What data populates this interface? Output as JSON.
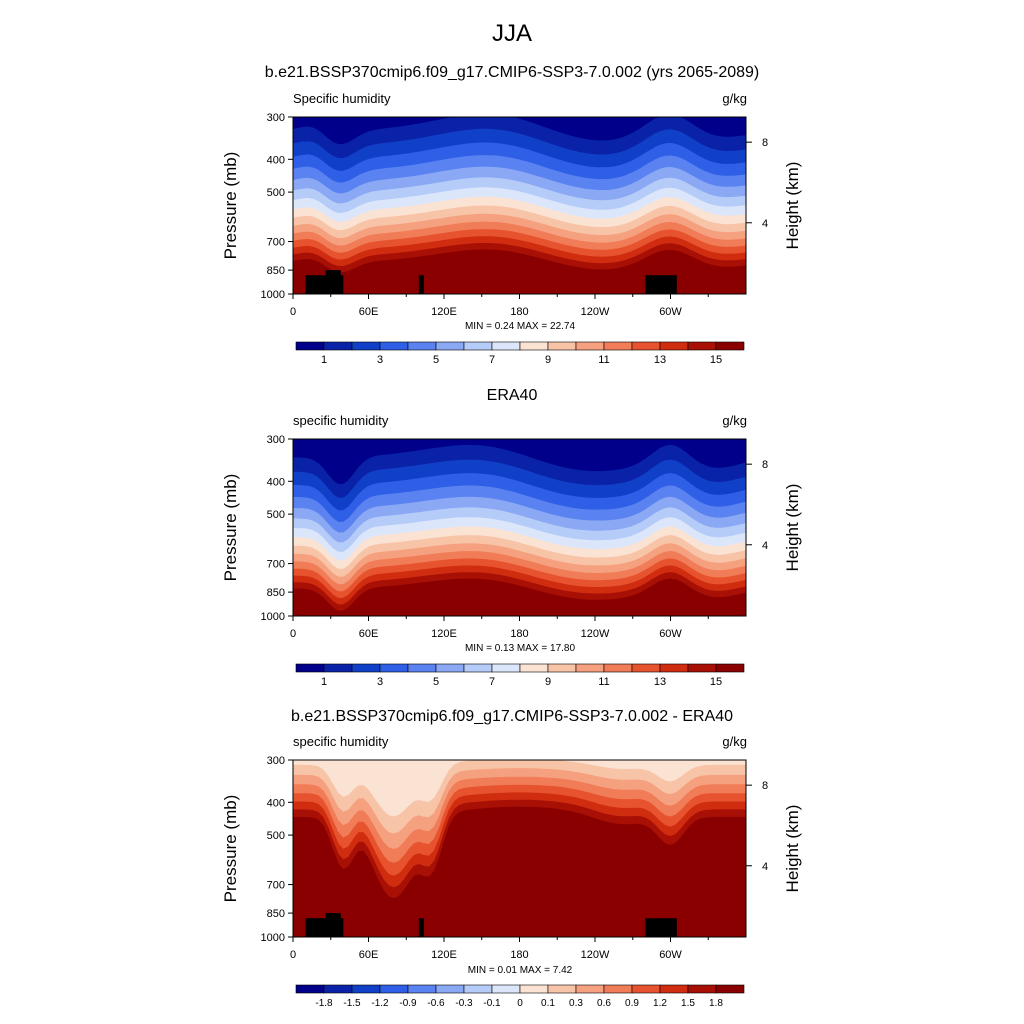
{
  "page": {
    "main_title": "JJA"
  },
  "chart_data": [
    {
      "type": "heatmap",
      "title": "b.e21.BSSP370cmip6.f09_g17.CMIP6-SSP3-7.0.002 (yrs 2065-2089)",
      "left_label": "Specific humidity",
      "units": "g/kg",
      "ylabel": "Pressure (mb)",
      "ylabel_right": "Height (km)",
      "pressure_ticks": [
        "300",
        "400",
        "500",
        "700",
        "850",
        "1000"
      ],
      "height_ticks": [
        "8",
        "4"
      ],
      "x_ticks": [
        "0",
        "60E",
        "120E",
        "180",
        "120W",
        "60W"
      ],
      "stats": "MIN =   0.24  MAX =  22.74",
      "colorbar_labels": [
        "1",
        "3",
        "5",
        "7",
        "9",
        "11",
        "13",
        "15"
      ],
      "colorbar_colors": [
        "#00008a",
        "#0a22a8",
        "#1140c8",
        "#2e5fe6",
        "#5a82f0",
        "#8aa8f4",
        "#b6ccf8",
        "#dce6fb",
        "#fbe3d4",
        "#f8c4a8",
        "#f5a180",
        "#f07c58",
        "#e6532e",
        "#d02c10",
        "#a81006",
        "#8a0000"
      ],
      "data_min": 0.24,
      "data_max": 22.74,
      "levels": [
        0,
        1,
        2,
        3,
        4,
        5,
        6,
        7,
        8,
        9,
        10,
        11,
        12,
        13,
        14,
        15
      ]
    },
    {
      "type": "heatmap",
      "title": "ERA40",
      "left_label": "specific humidity",
      "units": "g/kg",
      "ylabel": "Pressure (mb)",
      "ylabel_right": "Height (km)",
      "pressure_ticks": [
        "300",
        "400",
        "500",
        "700",
        "850",
        "1000"
      ],
      "height_ticks": [
        "8",
        "4"
      ],
      "x_ticks": [
        "0",
        "60E",
        "120E",
        "180",
        "120W",
        "60W"
      ],
      "stats": "MIN =   0.13  MAX =  17.80",
      "colorbar_labels": [
        "1",
        "3",
        "5",
        "7",
        "9",
        "11",
        "13",
        "15"
      ],
      "colorbar_colors": [
        "#00008a",
        "#0a22a8",
        "#1140c8",
        "#2e5fe6",
        "#5a82f0",
        "#8aa8f4",
        "#b6ccf8",
        "#dce6fb",
        "#fbe3d4",
        "#f8c4a8",
        "#f5a180",
        "#f07c58",
        "#e6532e",
        "#d02c10",
        "#a81006",
        "#8a0000"
      ],
      "data_min": 0.13,
      "data_max": 17.8,
      "levels": [
        0,
        1,
        2,
        3,
        4,
        5,
        6,
        7,
        8,
        9,
        10,
        11,
        12,
        13,
        14,
        15
      ]
    },
    {
      "type": "heatmap",
      "title": "b.e21.BSSP370cmip6.f09_g17.CMIP6-SSP3-7.0.002 - ERA40",
      "left_label": "specific humidity",
      "units": "g/kg",
      "ylabel": "Pressure (mb)",
      "ylabel_right": "Height (km)",
      "pressure_ticks": [
        "300",
        "400",
        "500",
        "700",
        "850",
        "1000"
      ],
      "height_ticks": [
        "8",
        "4"
      ],
      "x_ticks": [
        "0",
        "60E",
        "120E",
        "180",
        "120W",
        "60W"
      ],
      "stats": "MIN =   0.01  MAX =   7.42",
      "colorbar_labels": [
        "-1.8",
        "-1.5",
        "-1.2",
        "-0.9",
        "-0.6",
        "-0.3",
        "-0.1",
        "0",
        "0.1",
        "0.3",
        "0.6",
        "0.9",
        "1.2",
        "1.5",
        "1.8"
      ],
      "colorbar_colors": [
        "#00008a",
        "#0a22a8",
        "#1140c8",
        "#2e5fe6",
        "#5a82f0",
        "#8aa8f4",
        "#b6ccf8",
        "#dce6fb",
        "#fbe3d4",
        "#f8c4a8",
        "#f5a180",
        "#f07c58",
        "#e6532e",
        "#d02c10",
        "#a81006",
        "#8a0000"
      ],
      "data_min": 0.01,
      "data_max": 7.42,
      "levels": [
        0.1,
        0.3,
        0.6,
        0.9,
        1.2,
        1.5,
        1.8
      ]
    }
  ]
}
